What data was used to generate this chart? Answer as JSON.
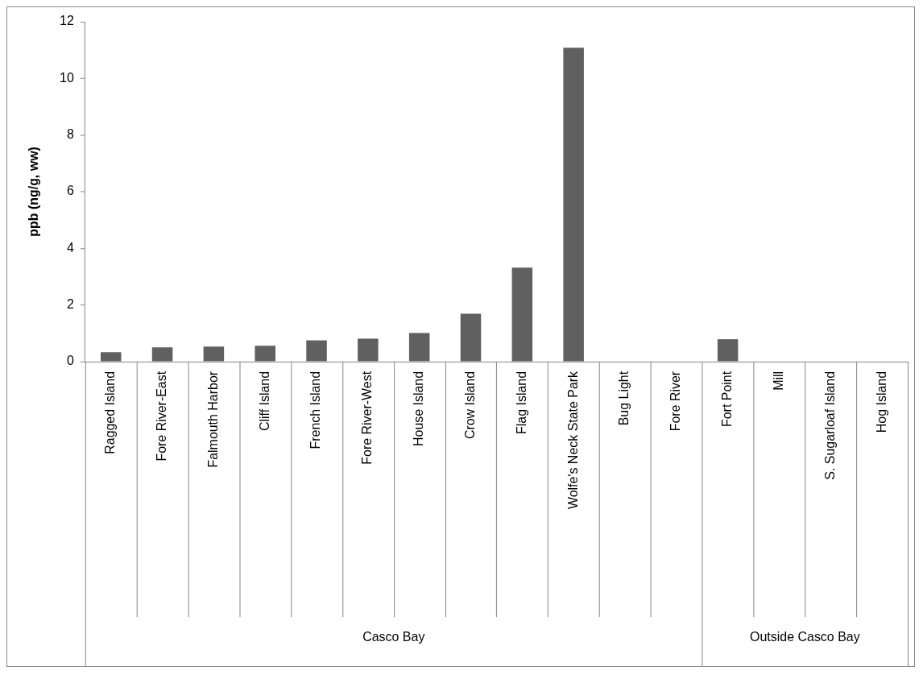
{
  "chart_data": {
    "type": "bar",
    "ylabel": "ppb (ng/g, ww)",
    "categories": [
      "Ragged Island",
      "Fore River-East",
      "Falmouth Harbor",
      "Cliff Island",
      "French Island",
      "Fore River-West",
      "House Island",
      "Crow Island",
      "Flag Island",
      "Wolfe's Neck State Park",
      "Bug Light",
      "Fore River",
      "Fort Point",
      "Mill",
      "S. Sugarloaf Island",
      "Hog Island"
    ],
    "values": [
      0.33,
      0.5,
      0.53,
      0.56,
      0.75,
      0.81,
      1.01,
      1.69,
      3.32,
      11.08,
      null,
      null,
      0.79,
      null,
      null,
      null
    ],
    "color": "#606060",
    "ylim": [
      0,
      12
    ],
    "yticks": [
      0,
      2,
      4,
      6,
      8,
      10,
      12
    ],
    "grid": false,
    "legend": false,
    "annotations": [
      "Casco Bay",
      "Outside Casco Bay"
    ]
  }
}
